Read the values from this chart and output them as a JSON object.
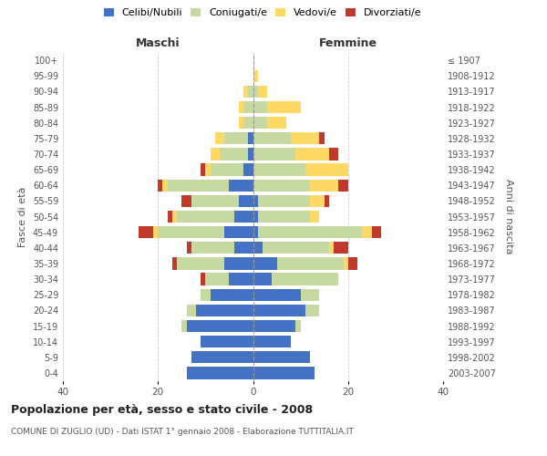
{
  "age_groups": [
    "0-4",
    "5-9",
    "10-14",
    "15-19",
    "20-24",
    "25-29",
    "30-34",
    "35-39",
    "40-44",
    "45-49",
    "50-54",
    "55-59",
    "60-64",
    "65-69",
    "70-74",
    "75-79",
    "80-84",
    "85-89",
    "90-94",
    "95-99",
    "100+"
  ],
  "birth_years": [
    "2003-2007",
    "1998-2002",
    "1993-1997",
    "1988-1992",
    "1983-1987",
    "1978-1982",
    "1973-1977",
    "1968-1972",
    "1963-1967",
    "1958-1962",
    "1953-1957",
    "1948-1952",
    "1943-1947",
    "1938-1942",
    "1933-1937",
    "1928-1932",
    "1923-1927",
    "1918-1922",
    "1913-1917",
    "1908-1912",
    "≤ 1907"
  ],
  "colors": {
    "celibi": "#4472c4",
    "coniugati": "#c5d9a0",
    "vedovi": "#ffd966",
    "divorziati": "#c0392b"
  },
  "maschi": {
    "celibi": [
      14,
      13,
      11,
      14,
      12,
      9,
      5,
      6,
      4,
      6,
      4,
      3,
      5,
      2,
      1,
      1,
      0,
      0,
      0,
      0,
      0
    ],
    "coniugati": [
      0,
      0,
      0,
      1,
      2,
      2,
      5,
      10,
      9,
      14,
      12,
      10,
      13,
      7,
      6,
      5,
      2,
      2,
      1,
      0,
      0
    ],
    "vedovi": [
      0,
      0,
      0,
      0,
      0,
      0,
      0,
      0,
      0,
      1,
      1,
      0,
      1,
      1,
      2,
      2,
      1,
      1,
      1,
      0,
      0
    ],
    "divorziati": [
      0,
      0,
      0,
      0,
      0,
      0,
      1,
      1,
      1,
      3,
      1,
      2,
      1,
      1,
      0,
      0,
      0,
      0,
      0,
      0,
      0
    ]
  },
  "femmine": {
    "celibi": [
      13,
      12,
      8,
      9,
      11,
      10,
      4,
      5,
      2,
      1,
      1,
      1,
      0,
      0,
      0,
      0,
      0,
      0,
      0,
      0,
      0
    ],
    "coniugati": [
      0,
      0,
      0,
      1,
      3,
      4,
      14,
      14,
      14,
      22,
      11,
      11,
      12,
      11,
      9,
      8,
      3,
      3,
      1,
      0,
      0
    ],
    "vedovi": [
      0,
      0,
      0,
      0,
      0,
      0,
      0,
      1,
      1,
      2,
      2,
      3,
      6,
      9,
      7,
      6,
      4,
      7,
      2,
      1,
      0
    ],
    "divorziati": [
      0,
      0,
      0,
      0,
      0,
      0,
      0,
      2,
      3,
      2,
      0,
      1,
      2,
      0,
      2,
      1,
      0,
      0,
      0,
      0,
      0
    ]
  },
  "title": "Popolazione per età, sesso e stato civile - 2008",
  "subtitle": "COMUNE DI ZUGLIO (UD) - Dati ISTAT 1° gennaio 2008 - Elaborazione TUTTITALIA.IT",
  "xlabel_left": "Maschi",
  "xlabel_right": "Femmine",
  "ylabel_left": "Fasce di età",
  "ylabel_right": "Anni di nascita",
  "xlim": 40,
  "legend_labels": [
    "Celibi/Nubili",
    "Coniugati/e",
    "Vedovi/e",
    "Divorziati/e"
  ],
  "background_color": "#ffffff",
  "grid_color": "#cccccc"
}
